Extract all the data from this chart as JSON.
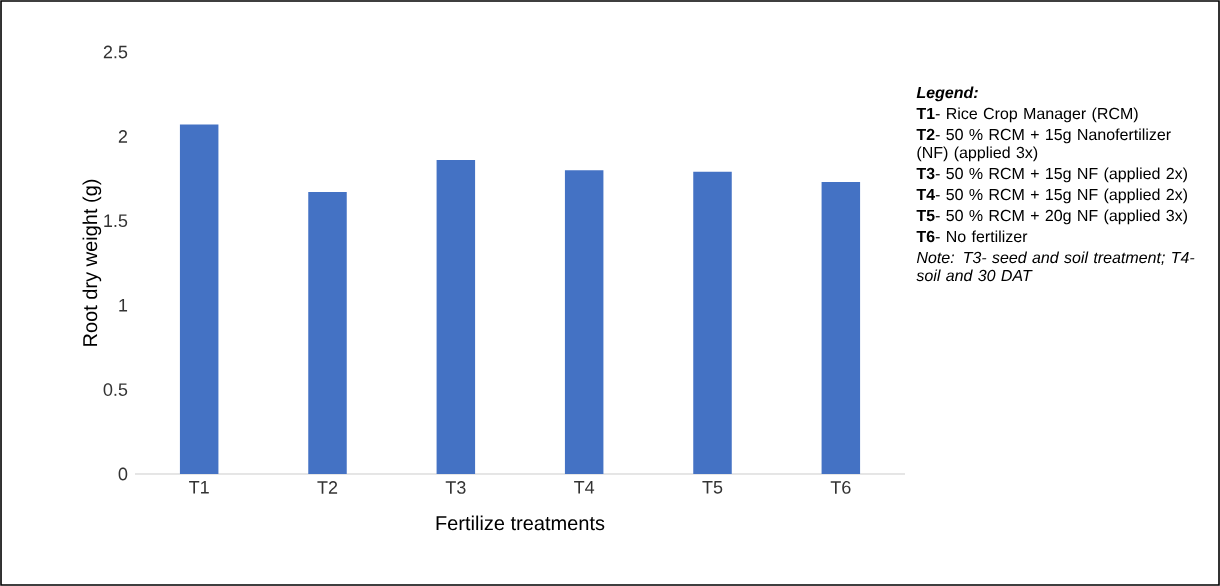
{
  "chart_data": {
    "type": "bar",
    "categories": [
      "T1",
      "T2",
      "T3",
      "T4",
      "T5",
      "T6"
    ],
    "values": [
      2.07,
      1.67,
      1.86,
      1.8,
      1.79,
      1.73
    ],
    "color": "#4472c4",
    "xlabel": "Fertilize treatments",
    "ylabel": "Root dry weight (g)",
    "ylim": [
      0,
      2.5
    ],
    "yticks": [
      0,
      0.5,
      1,
      1.5,
      2,
      2.5
    ],
    "grid": false,
    "annotations": [
      "Legend:",
      "**T1**- Rice Crop Manager (RCM)",
      "**T2**- 50 % RCM + 15g Nanofertilizer (NF) (applied 3x)",
      "**T3**- 50 % RCM + 15g NF (applied 2x)",
      "**T4**- 50 % RCM + 15g NF (applied 2x)",
      "**T5**- 50 % RCM + 20g NF (applied 3x)",
      "**T6**- No fertilizer",
      "Note: T3- seed and soil treatment; T4- soil and 30 DAT"
    ]
  }
}
